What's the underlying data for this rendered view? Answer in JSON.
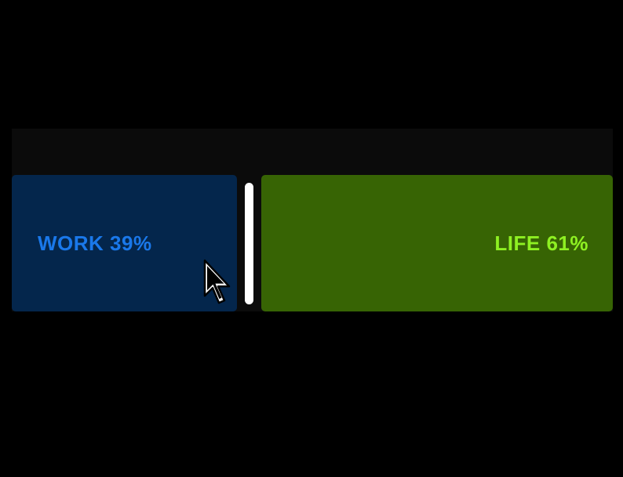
{
  "split_slider": {
    "work": {
      "label": "WORK 39%",
      "fraction": 0.39,
      "color": "#04264c",
      "text_color": "#1a78ea"
    },
    "life": {
      "label": "LIFE 61%",
      "fraction": 0.61,
      "color": "#376404",
      "text_color": "#8ef022"
    },
    "handle_color": "#ffffff"
  },
  "cursor": {
    "icon": "arrow-pointer-icon"
  }
}
